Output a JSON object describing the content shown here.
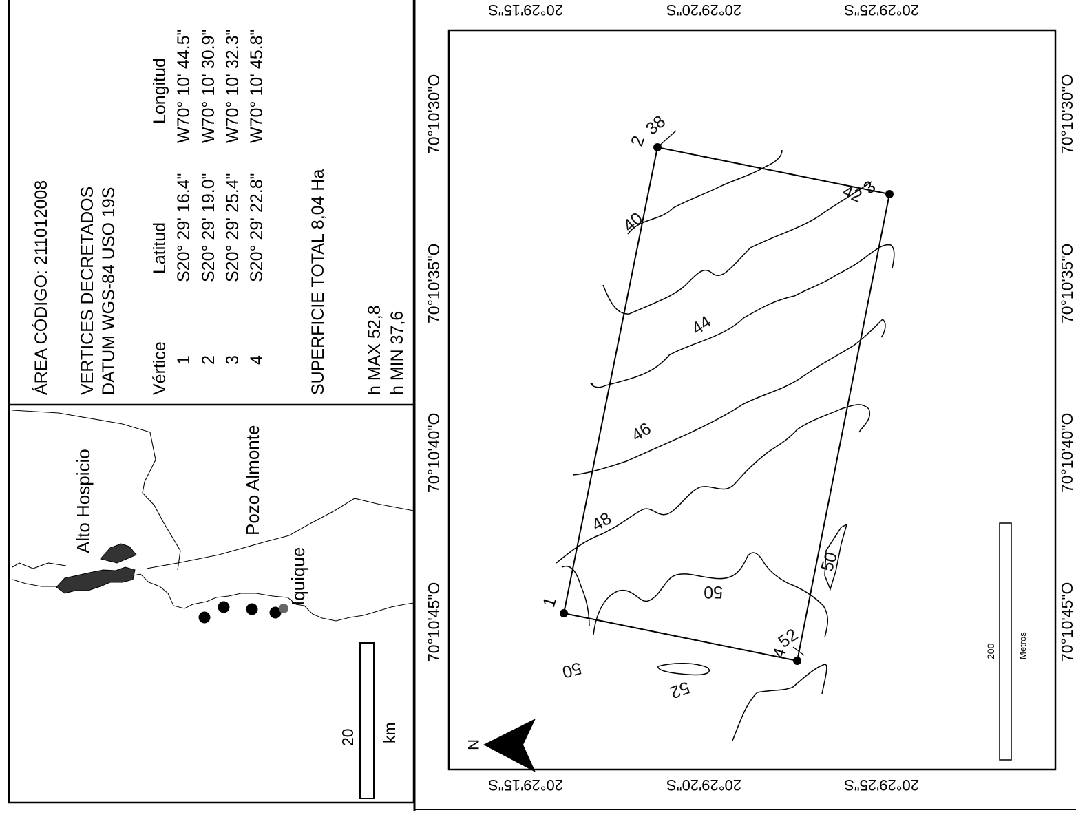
{
  "info": {
    "area_code": "ÁREA CÓDIGO: 211012008",
    "vertices_title": "VERTICES DECRETADOS",
    "datum": "DATUM WGS-84 USO 19S",
    "headers": {
      "vertex": "Vértice",
      "lat": "Latitud",
      "lon": "Longitud"
    },
    "rows": [
      {
        "v": "1",
        "lat": "S20° 29' 16.4\"",
        "lon": "W70° 10' 44.5\""
      },
      {
        "v": "2",
        "lat": "S20° 29' 19.0\"",
        "lon": "W70° 10' 30.9\""
      },
      {
        "v": "3",
        "lat": "S20° 29' 25.4\"",
        "lon": "W70° 10' 32.3\""
      },
      {
        "v": "4",
        "lat": "S20° 29' 22.8\"",
        "lon": "W70° 10' 45.8\""
      }
    ],
    "surface": "SUPERFICIE TOTAL 8,04 Ha",
    "h_max": "h MAX 52,8",
    "h_min": "h MIN  37,6"
  },
  "locator": {
    "places": [
      "Alto Hospicio",
      "Pozo Almonte",
      "Iquique"
    ],
    "scale_value": "20",
    "scale_unit": "km"
  },
  "main_map": {
    "lat_labels_top": [
      "20°29'15\"S",
      "20°29'20\"S",
      "20°29'25\"S"
    ],
    "lat_labels_bottom": [
      "20°29'15\"S",
      "20°29'20\"S",
      "20°29'25\"S"
    ],
    "lon_labels_left": [
      "70°10'45\"O",
      "70°10'40\"O",
      "70°10'35\"O",
      "70°10'30\"O"
    ],
    "lon_labels_right": [
      "70°10'45\"O",
      "70°10'40\"O",
      "70°10'35\"O",
      "70°10'30\"O"
    ],
    "vertex_labels": [
      "1",
      "2",
      "3",
      "4"
    ],
    "contour_labels": [
      "38",
      "40",
      "42",
      "44",
      "46",
      "48",
      "50",
      "50",
      "50",
      "52",
      "52"
    ],
    "north_label": "N",
    "scale_value": "200",
    "scale_unit": "Metros"
  }
}
